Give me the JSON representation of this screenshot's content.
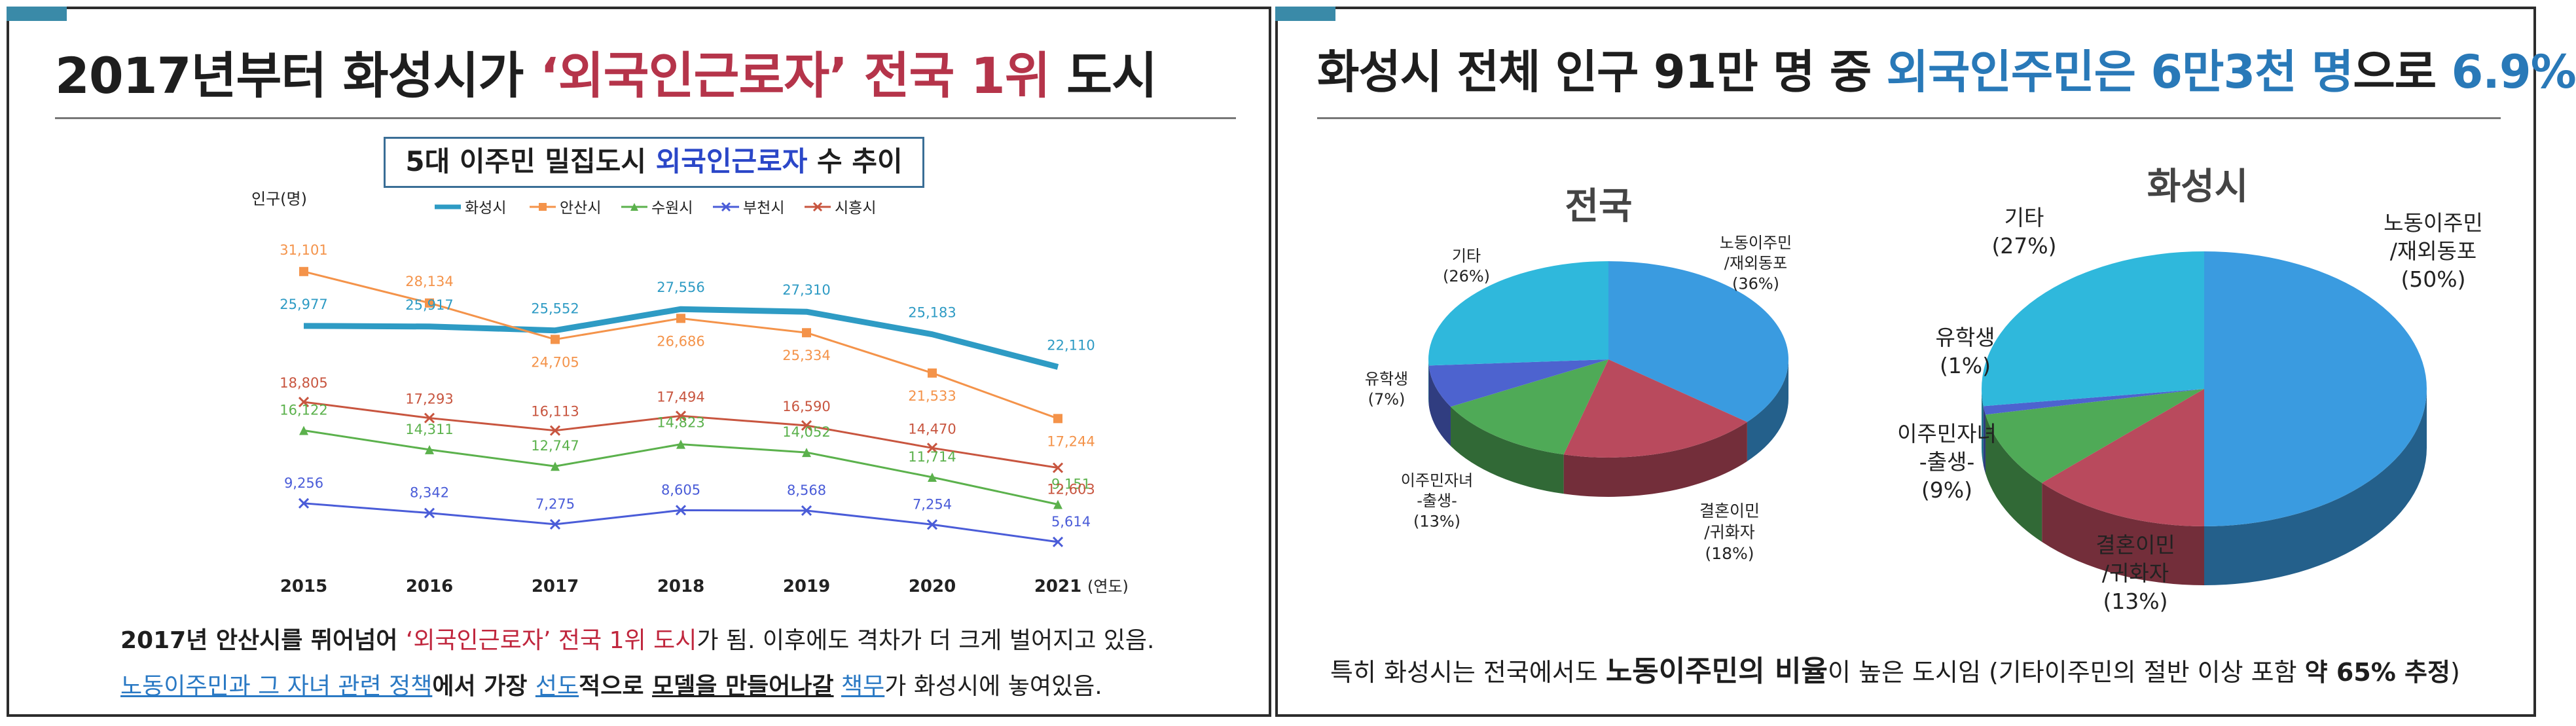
{
  "left": {
    "title_1": "2017년부터 화성시가 ",
    "title_2": "‘외국인근로자’ 전국 1위",
    "title_3": " 도시",
    "chart_box_1": "5대 이주민 밀집도시 ",
    "chart_box_2": "외국인근로자",
    "chart_box_3": " 수 추이",
    "caption1_a": "2017년 안산시를 뛰어넘어 ",
    "caption1_b": "‘외국인근로자’ 전국 1위 도시",
    "caption1_c": "가 됨. 이후에도 격차가 더 크게 벌어지고 있음.",
    "caption2_a": "노동이주민과 그 자녀 관련 정책",
    "caption2_b": "에서 가장 ",
    "caption2_c": "선도",
    "caption2_d": "적으로 ",
    "caption2_e": "모델을 만들어나갈",
    "caption2_f": " ",
    "caption2_g": "책무",
    "caption2_h": "가 화성시에 놓여있음."
  },
  "right": {
    "title_1": "화성시 전체 인구 91만 명 중 ",
    "title_2": "외국인주민은 6만3천 명",
    "title_3": "으로 ",
    "title_4": "6.9%",
    "caption_a": "특히 화성시는 전국에서도 ",
    "caption_b": "노동이주민의 비율",
    "caption_c": "이 높은 도시임 (기타이주민의 절반 이상 포함 ",
    "caption_d": "약 65% 추정",
    "caption_e": ")"
  },
  "colors": {
    "hwaseong": "#2e9bc4",
    "ansan": "#f4934a",
    "suwon": "#5bb14c",
    "bucheon": "#4a5cd8",
    "siheung": "#c8553f",
    "pie_labor": "#3a9be0",
    "pie_marriage": "#b94a5d",
    "pie_children": "#4faa57",
    "pie_student": "#4d63cf",
    "pie_other": "#2fb8dc"
  },
  "chart_data": [
    {
      "type": "line",
      "title": "5대 이주민 밀집도시 외국인근로자 수 추이",
      "ylabel": "인구(명)",
      "xlabel": "(연도)",
      "x": [
        "2015",
        "2016",
        "2017",
        "2018",
        "2019",
        "2020",
        "2021"
      ],
      "ylim": [
        4000,
        33000
      ],
      "grid": false,
      "legend": "top",
      "series": [
        {
          "name": "화성시",
          "values": [
            25977,
            25917,
            25552,
            27556,
            27310,
            25183,
            22110
          ],
          "labels": [
            "25,977",
            "25,917",
            "25,552",
            "27,556",
            "27,310",
            "25,183",
            "22,110"
          ]
        },
        {
          "name": "안산시",
          "values": [
            31101,
            28134,
            24705,
            26686,
            25334,
            21533,
            17244
          ],
          "labels": [
            "31,101",
            "28,134",
            "24,705",
            "26,686",
            "25,334",
            "21,533",
            "17,244"
          ]
        },
        {
          "name": "수원시",
          "values": [
            16122,
            14311,
            12747,
            14823,
            14052,
            11714,
            9151
          ],
          "labels": [
            "16,122",
            "14,311",
            "12,747",
            "14,823",
            "14,052",
            "11,714",
            "9,151"
          ]
        },
        {
          "name": "부천시",
          "values": [
            9256,
            8342,
            7275,
            8605,
            8568,
            7254,
            5614
          ],
          "labels": [
            "9,256",
            "8,342",
            "7,275",
            "8,605",
            "8,568",
            "7,254",
            "5,614"
          ]
        },
        {
          "name": "시흥시",
          "values": [
            18805,
            17293,
            16113,
            17494,
            16590,
            14470,
            12603
          ],
          "labels": [
            "18,805",
            "17,293",
            "16,113",
            "17,494",
            "16,590",
            "14,470",
            "12,603"
          ]
        }
      ]
    },
    {
      "type": "pie",
      "title": "전국",
      "slices": [
        {
          "label": [
            "노동이주민",
            "/재외동포"
          ],
          "pct": "(36%)",
          "value": 36
        },
        {
          "label": [
            "결혼이민",
            "/귀화자"
          ],
          "pct": "(18%)",
          "value": 18
        },
        {
          "label": [
            "이주민자녀",
            "-출생-"
          ],
          "pct": "(13%)",
          "value": 13
        },
        {
          "label": [
            "유학생"
          ],
          "pct": "(7%)",
          "value": 7
        },
        {
          "label": [
            "기타"
          ],
          "pct": "(26%)",
          "value": 26
        }
      ]
    },
    {
      "type": "pie",
      "title": "화성시",
      "slices": [
        {
          "label": [
            "노동이주민",
            "/재외동포"
          ],
          "pct": "(50%)",
          "value": 50
        },
        {
          "label": [
            "결혼이민",
            "/귀화자"
          ],
          "pct": "(13%)",
          "value": 13
        },
        {
          "label": [
            "이주민자녀",
            "-출생-"
          ],
          "pct": "(9%)",
          "value": 9
        },
        {
          "label": [
            "유학생"
          ],
          "pct": "(1%)",
          "value": 1
        },
        {
          "label": [
            "기타"
          ],
          "pct": "(27%)",
          "value": 27
        }
      ]
    }
  ]
}
